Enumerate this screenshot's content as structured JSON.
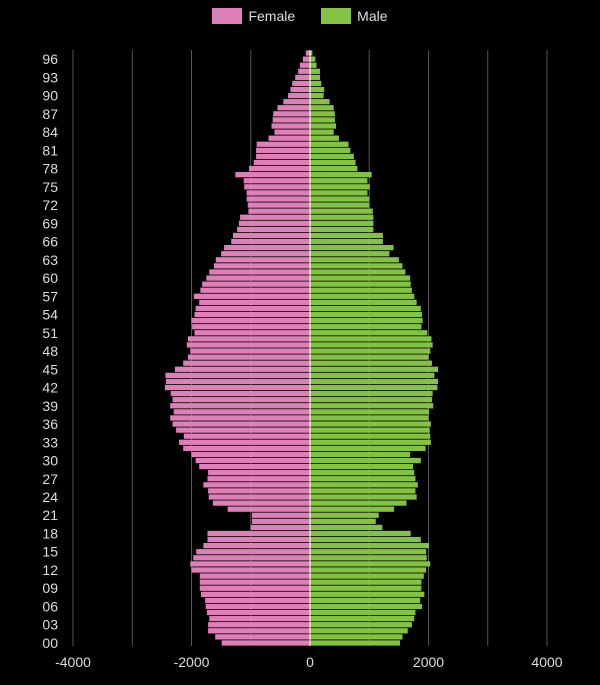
{
  "chart_data": {
    "type": "bar",
    "orientation": "horizontal",
    "title": "",
    "xlabel": "",
    "ylabel": "",
    "xlim": [
      -4000,
      4000
    ],
    "x_ticks": [
      -4000,
      -2000,
      0,
      2000,
      4000
    ],
    "x_tick_labels": [
      "-4000",
      "-2000",
      "0",
      "2000",
      "4000"
    ],
    "y_tick_labels": [
      "96",
      "93",
      "90",
      "87",
      "84",
      "81",
      "78",
      "75",
      "72",
      "69",
      "66",
      "63",
      "60",
      "57",
      "54",
      "51",
      "48",
      "45",
      "42",
      "39",
      "36",
      "33",
      "30",
      "27",
      "24",
      "21",
      "18",
      "15",
      "12",
      "09",
      "06",
      "03",
      "00"
    ],
    "grid": true,
    "legend_position": "top-center",
    "colors": {
      "female": "#df7fb8",
      "male": "#84c243",
      "background": "#000000",
      "grid": "#555555",
      "text": "#dddddd"
    },
    "ages": [
      0,
      1,
      2,
      3,
      4,
      5,
      6,
      7,
      8,
      9,
      10,
      11,
      12,
      13,
      14,
      15,
      16,
      17,
      18,
      19,
      20,
      21,
      22,
      23,
      24,
      25,
      26,
      27,
      28,
      29,
      30,
      31,
      32,
      33,
      34,
      35,
      36,
      37,
      38,
      39,
      40,
      41,
      42,
      43,
      44,
      45,
      46,
      47,
      48,
      49,
      50,
      51,
      52,
      53,
      54,
      55,
      56,
      57,
      58,
      59,
      60,
      61,
      62,
      63,
      64,
      65,
      66,
      67,
      68,
      69,
      70,
      71,
      72,
      73,
      74,
      75,
      76,
      77,
      78,
      79,
      80,
      81,
      82,
      83,
      84,
      85,
      86,
      87,
      88,
      89,
      90,
      91,
      92,
      93,
      94,
      95,
      96,
      97
    ],
    "series": [
      {
        "name": "Female",
        "values": [
          1490,
          1600,
          1720,
          1720,
          1700,
          1740,
          1760,
          1770,
          1840,
          1860,
          1860,
          1860,
          2000,
          2020,
          1970,
          1920,
          1800,
          1730,
          1730,
          1000,
          980,
          980,
          1390,
          1640,
          1710,
          1720,
          1800,
          1730,
          1720,
          1870,
          1930,
          2000,
          2140,
          2210,
          2130,
          2260,
          2320,
          2360,
          2300,
          2360,
          2320,
          2350,
          2450,
          2430,
          2440,
          2280,
          2140,
          2060,
          2020,
          2080,
          2060,
          1950,
          1990,
          2000,
          1950,
          1930,
          1870,
          1960,
          1850,
          1820,
          1750,
          1700,
          1620,
          1590,
          1500,
          1450,
          1330,
          1300,
          1230,
          1200,
          1180,
          1040,
          1050,
          1070,
          1070,
          1110,
          1120,
          1260,
          1030,
          950,
          910,
          910,
          900,
          700,
          600,
          650,
          630,
          620,
          550,
          450,
          370,
          330,
          300,
          250,
          200,
          170,
          120,
          70
        ]
      },
      {
        "name": "Male",
        "values": [
          1520,
          1560,
          1650,
          1720,
          1760,
          1780,
          1890,
          1860,
          1930,
          1880,
          1880,
          1920,
          1960,
          2030,
          1970,
          1960,
          2010,
          1870,
          1700,
          1220,
          1110,
          1160,
          1420,
          1630,
          1800,
          1780,
          1820,
          1780,
          1760,
          1740,
          1870,
          1690,
          1950,
          2040,
          2030,
          2020,
          2040,
          2000,
          2010,
          2080,
          2060,
          2070,
          2150,
          2160,
          2100,
          2160,
          2060,
          2000,
          2030,
          2070,
          2050,
          1980,
          1880,
          1900,
          1890,
          1870,
          1800,
          1760,
          1720,
          1700,
          1690,
          1610,
          1560,
          1500,
          1340,
          1410,
          1230,
          1230,
          1070,
          1070,
          1070,
          1060,
          1000,
          1000,
          970,
          1010,
          970,
          1040,
          800,
          770,
          740,
          680,
          650,
          490,
          400,
          440,
          420,
          420,
          400,
          330,
          230,
          240,
          190,
          170,
          170,
          110,
          90,
          40
        ]
      }
    ]
  }
}
